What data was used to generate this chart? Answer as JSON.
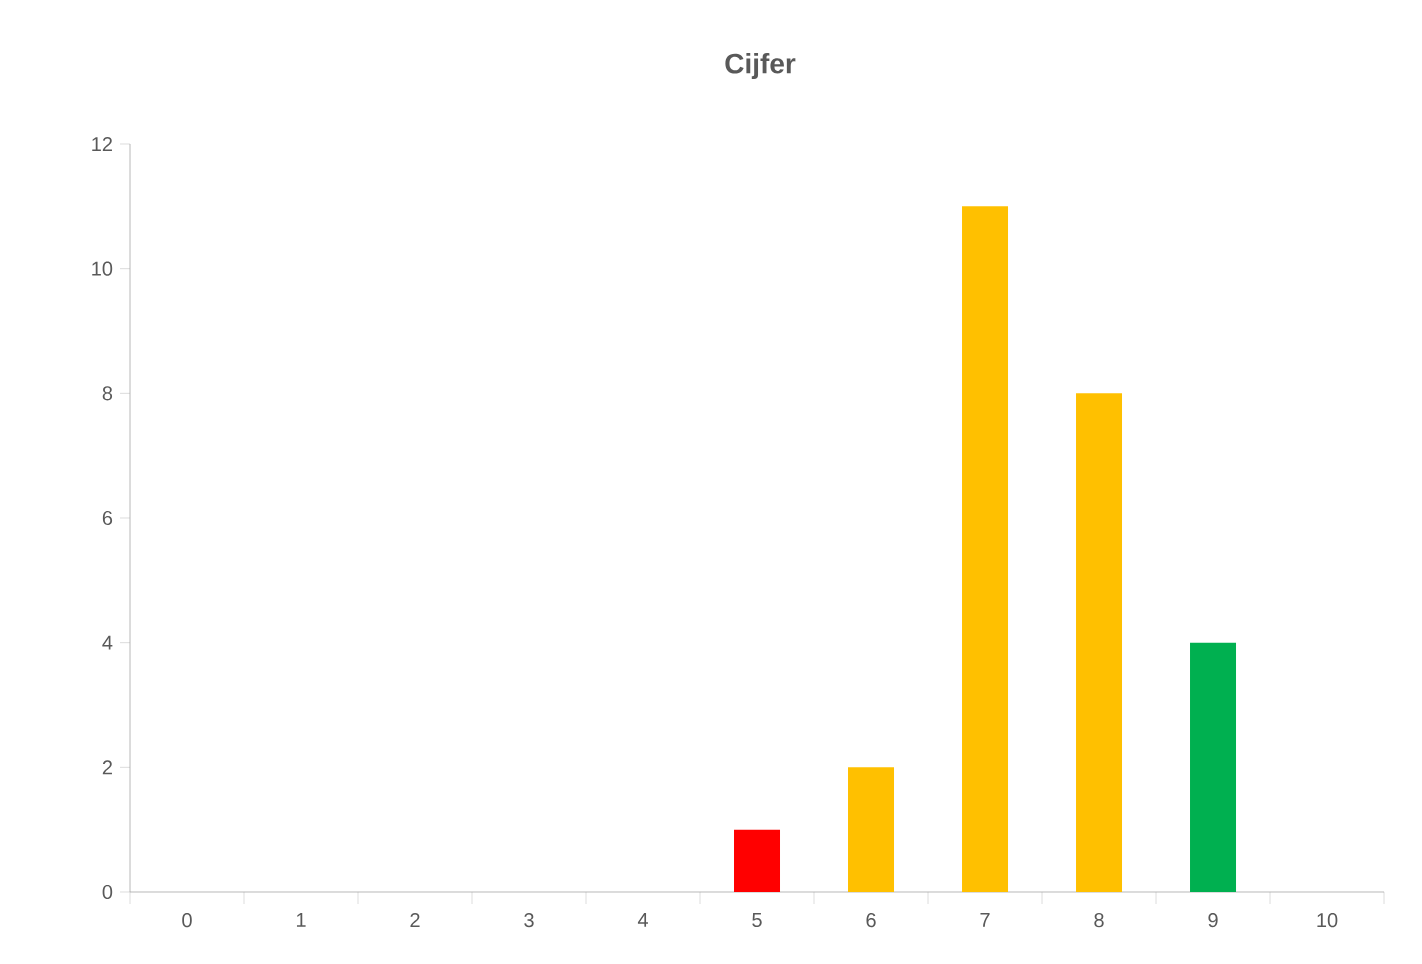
{
  "chart_data": {
    "type": "bar",
    "title": "Cijfer",
    "categories": [
      "0",
      "1",
      "2",
      "3",
      "4",
      "5",
      "6",
      "7",
      "8",
      "9",
      "10"
    ],
    "values": [
      0,
      0,
      0,
      0,
      0,
      1,
      2,
      11,
      8,
      4,
      0
    ],
    "colors": [
      "#ffc000",
      "#ffc000",
      "#ffc000",
      "#ffc000",
      "#ffc000",
      "#ff0000",
      "#ffc000",
      "#ffc000",
      "#ffc000",
      "#00b050",
      "#ffc000"
    ],
    "ylim": [
      0,
      12
    ],
    "yticks": [
      0,
      2,
      4,
      6,
      8,
      10,
      12
    ]
  }
}
